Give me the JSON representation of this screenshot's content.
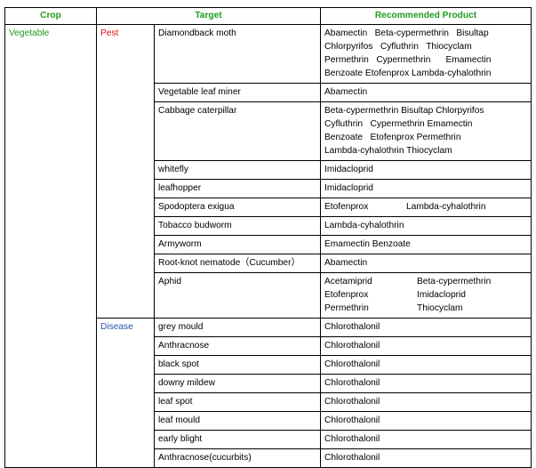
{
  "headers": {
    "crop": "Crop",
    "target": "Target",
    "product": "Recommended Product"
  },
  "crop": "Vegetable",
  "pest_category": "Pest",
  "disease_category": "Disease",
  "pests": [
    {
      "target": "Diamondback moth",
      "product_lines": [
        "Abamectin   Beta-cypermethrin   Bisultap",
        "Chlorpyrifos   Cyfluthrin   Thiocyclam",
        "Permethrin   Cypermethrin      Emamectin",
        "Benzoate Etofenprox Lambda-cyhalothrin"
      ]
    },
    {
      "target": "Vegetable leaf miner",
      "product_lines": [
        "Abamectin"
      ]
    },
    {
      "target": "Cabbage caterpillar",
      "product_lines": [
        "Beta-cypermethrin Bisultap Chlorpyrifos",
        "Cyfluthrin   Cypermethrin Emamectin",
        "Benzoate   Etofenprox Permethrin",
        "Lambda-cyhalothrin Thiocyclam"
      ]
    },
    {
      "target": "whitefly",
      "product_lines": [
        "Imidacloprid"
      ]
    },
    {
      "target": "leafhopper",
      "product_lines": [
        "Imidacloprid"
      ]
    },
    {
      "target": "Spodoptera exigua",
      "product_pair": [
        "Etofenprox",
        "Lambda-cyhalothrin"
      ]
    },
    {
      "target": "Tobacco budworm",
      "product_lines": [
        "Lambda-cyhalothrin"
      ]
    },
    {
      "target": "Armyworm",
      "product_lines": [
        "Emamectin Benzoate"
      ]
    },
    {
      "target": "Root-knot nematode（Cucumber）",
      "product_lines": [
        "Abamectin"
      ]
    },
    {
      "target": "Aphid",
      "product_grid": [
        [
          "Acetamiprid",
          "Beta-cypermethrin"
        ],
        [
          "Etofenprox",
          "Imidacloprid"
        ],
        [
          "Permethrin",
          "Thiocyclam"
        ]
      ]
    }
  ],
  "diseases": [
    {
      "target": "grey mould",
      "product": "Chlorothalonil"
    },
    {
      "target": "Anthracnose",
      "product": "Chlorothalonil"
    },
    {
      "target": "black spot",
      "product": "Chlorothalonil"
    },
    {
      "target": "downy mildew",
      "product": "Chlorothalonil"
    },
    {
      "target": "leaf spot",
      "product": "Chlorothalonil"
    },
    {
      "target": "leaf mould",
      "product": "Chlorothalonil"
    },
    {
      "target": "early blight",
      "product": "Chlorothalonil"
    },
    {
      "target": "Anthracnose(cucurbits)",
      "product": "Chlorothalonil"
    }
  ],
  "colors": {
    "header": "#1f9a1f",
    "crop": "#1f9a1f",
    "pest": "#e01010",
    "disease": "#2a4fae",
    "border": "#000000"
  }
}
